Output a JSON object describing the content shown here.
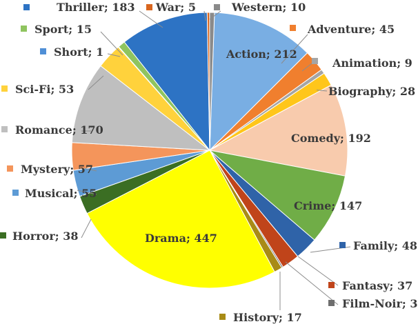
{
  "chart_data": {
    "type": "pie",
    "title": "",
    "label_format": "{name}; {value}",
    "slices": [
      {
        "name": "Action",
        "value": 212,
        "color": "#79aee3"
      },
      {
        "name": "Adventure",
        "value": 45,
        "color": "#f07f2e"
      },
      {
        "name": "Animation",
        "value": 9,
        "color": "#a5a5a5"
      },
      {
        "name": "Biography",
        "value": 28,
        "color": "#ffc61a"
      },
      {
        "name": "Comedy",
        "value": 192,
        "color": "#f8cbad"
      },
      {
        "name": "Crime",
        "value": 147,
        "color": "#70ad47"
      },
      {
        "name": "Family",
        "value": 48,
        "color": "#2f63a8"
      },
      {
        "name": "Fantasy",
        "value": 37,
        "color": "#c0441a"
      },
      {
        "name": "Film-Noir",
        "value": 3,
        "color": "#6e6e6e"
      },
      {
        "name": "History",
        "value": 17,
        "color": "#a88b16"
      },
      {
        "name": "Drama",
        "value": 447,
        "color": "#ffff00"
      },
      {
        "name": "Horror",
        "value": 38,
        "color": "#3b6e23"
      },
      {
        "name": "Musical",
        "value": 55,
        "color": "#5d9bd5"
      },
      {
        "name": "Mystery",
        "value": 57,
        "color": "#f4955b"
      },
      {
        "name": "Romance",
        "value": 170,
        "color": "#bfbfbf"
      },
      {
        "name": "Sci-Fi",
        "value": 53,
        "color": "#ffd23c"
      },
      {
        "name": "Short",
        "value": 1,
        "color": "#4f8fd6"
      },
      {
        "name": "Sport",
        "value": 15,
        "color": "#8fc45f"
      },
      {
        "name": "Thriller",
        "value": 183,
        "color": "#2d73c4"
      },
      {
        "name": "War",
        "value": 5,
        "color": "#d9661f"
      },
      {
        "name": "Western",
        "value": 10,
        "color": "#8a8a8a"
      }
    ]
  }
}
